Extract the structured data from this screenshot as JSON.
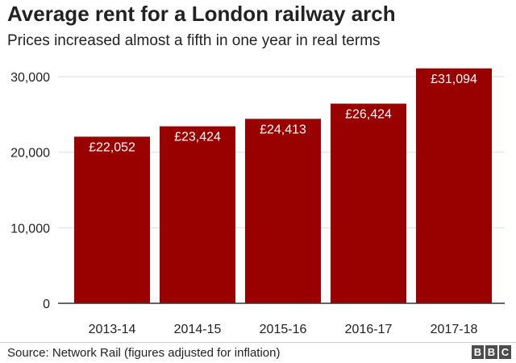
{
  "title": "Average rent for a London railway arch",
  "subtitle": "Prices increased almost a fifth in one year in real terms",
  "source": "Source: Network Rail (figures adjusted for inflation)",
  "logo": {
    "letters": [
      "B",
      "B",
      "C"
    ]
  },
  "colors": {
    "bar": "#990000",
    "grid": "#dddddd",
    "axis": "#333333",
    "label_on_bar": "#ffffff"
  },
  "chart_data": {
    "type": "bar",
    "categories": [
      "2013-14",
      "2014-15",
      "2015-16",
      "2016-17",
      "2017-18"
    ],
    "values": [
      22052,
      23424,
      24413,
      26424,
      31094
    ],
    "data_labels": [
      "£22,052",
      "£23,424",
      "£24,413",
      "£26,424",
      "£31,094"
    ],
    "yticks": [
      0,
      10000,
      20000,
      30000
    ],
    "ytick_labels": [
      "0",
      "10,000",
      "20,000",
      "30,000"
    ],
    "ylim": [
      0,
      30000
    ],
    "grid": true,
    "legend": "none"
  }
}
